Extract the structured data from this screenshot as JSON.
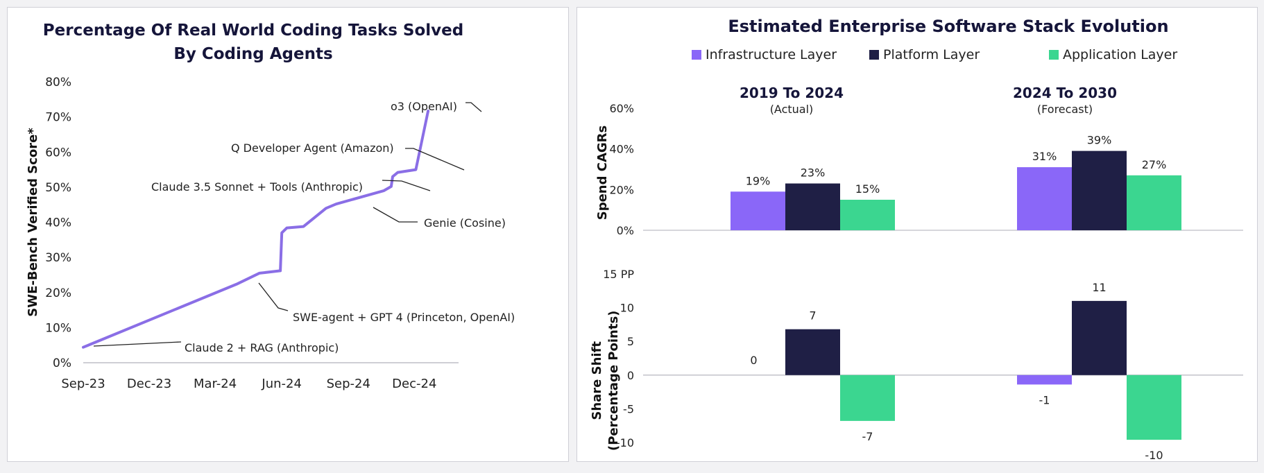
{
  "colors": {
    "infrastructure": "#8a67f8",
    "platform": "#1f1f45",
    "application": "#3bd690",
    "line": "#8a6ee6",
    "axis": "#bdbdc5"
  },
  "chart_data": [
    {
      "type": "line",
      "title_line1": "Percentage Of Real World Coding Tasks Solved",
      "title_line2": "By Coding Agents",
      "ylabel": "SWE-Bench Verified Score*",
      "xlabel": "",
      "x_ticks": [
        "Sep-23",
        "Dec-23",
        "Mar-24",
        "Jun-24",
        "Sep-24",
        "Dec-24"
      ],
      "x_range": [
        "2023-09-01",
        "2025-01-31"
      ],
      "y_ticks": [
        "0%",
        "10%",
        "20%",
        "30%",
        "40%",
        "50%",
        "60%",
        "70%",
        "80%"
      ],
      "ylim": [
        0,
        80
      ],
      "grid": false,
      "series": [
        {
          "points": [
            {
              "x": "2023-09-01",
              "y": 4.4
            },
            {
              "x": "2024-04-01",
              "y": 22.5
            },
            {
              "x": "2024-05-01",
              "y": 25.5
            },
            {
              "x": "2024-05-30",
              "y": 26.2
            },
            {
              "x": "2024-06-01",
              "y": 37.0
            },
            {
              "x": "2024-06-08",
              "y": 38.4
            },
            {
              "x": "2024-07-01",
              "y": 38.8
            },
            {
              "x": "2024-08-01",
              "y": 44.0
            },
            {
              "x": "2024-08-15",
              "y": 45.2
            },
            {
              "x": "2024-10-20",
              "y": 49.0
            },
            {
              "x": "2024-10-30",
              "y": 50.2
            },
            {
              "x": "2024-11-01",
              "y": 53.0
            },
            {
              "x": "2024-11-08",
              "y": 54.2
            },
            {
              "x": "2024-12-03",
              "y": 55.0
            },
            {
              "x": "2024-12-20",
              "y": 71.7
            }
          ]
        }
      ],
      "annotations": [
        {
          "text": "Claude 2 + RAG (Anthropic)",
          "x": "2023-09-01",
          "y": 4.4
        },
        {
          "text": "SWE-agent + GPT 4 (Princeton, OpenAI)",
          "x": "2024-04-01",
          "y": 22.5
        },
        {
          "text": "Genie (Cosine)",
          "x": "2024-08-01",
          "y": 44.0
        },
        {
          "text": "Claude 3.5 Sonnet + Tools (Anthropic)",
          "x": "2024-10-22",
          "y": 49.0
        },
        {
          "text": "Q Developer Agent (Amazon)",
          "x": "2024-12-03",
          "y": 55.0
        },
        {
          "text": "o3 (OpenAI)",
          "x": "2024-12-20",
          "y": 71.7
        }
      ]
    },
    {
      "type": "bar",
      "title": "Estimated Enterprise Software Stack Evolution",
      "legend_position": "top",
      "series_names": [
        "Infrastructure Layer",
        "Platform Layer",
        "Application Layer"
      ],
      "groups": [
        {
          "label": "2019 To 2024",
          "sublabel": "(Actual)"
        },
        {
          "label": "2024 To 2030",
          "sublabel": "(Forecast)"
        }
      ],
      "top": {
        "ylabel": "Spend CAGRs",
        "y_ticks": [
          "0%",
          "20%",
          "40%",
          "60%"
        ],
        "ylim": [
          0,
          60
        ],
        "values": [
          [
            19,
            23,
            15
          ],
          [
            31,
            39,
            27
          ]
        ],
        "labels": [
          [
            "19%",
            "23%",
            "15%"
          ],
          [
            "31%",
            "39%",
            "27%"
          ]
        ]
      },
      "bottom": {
        "ylabel_line1": "Share Shift",
        "ylabel_line2": "(Percentage Points)",
        "y_ticks": [
          "-10",
          "-5",
          "0",
          "5",
          "10"
        ],
        "y_top_label": "15 PP",
        "ylim": [
          -10,
          15
        ],
        "values": [
          [
            0,
            6.8,
            -6.8
          ],
          [
            -1.4,
            11,
            -9.6
          ]
        ],
        "labels": [
          [
            "0",
            "7",
            "-7"
          ],
          [
            "-1",
            "11",
            "-10"
          ]
        ]
      }
    }
  ]
}
